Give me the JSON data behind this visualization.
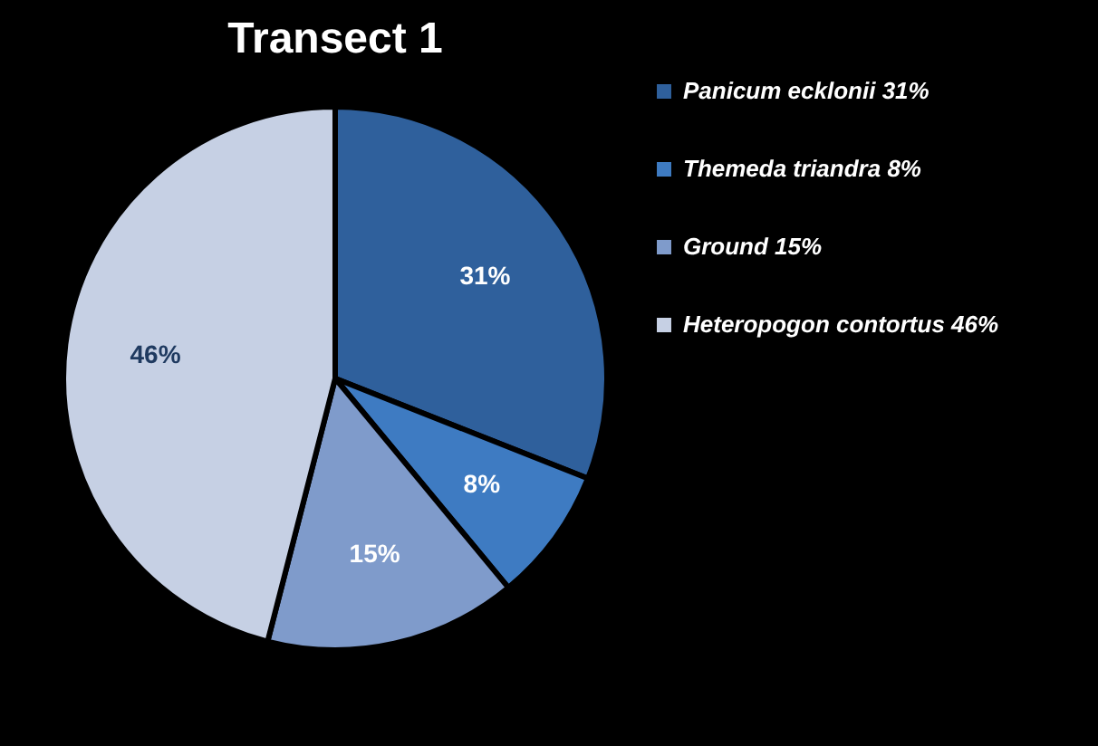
{
  "chart_data": {
    "type": "pie",
    "title": "Transect 1",
    "categories": [
      "Panicum ecklonii 31%",
      "Themeda triandra 8%",
      "Ground 15%",
      "Heteropogon contortus 46%"
    ],
    "values": [
      31,
      8,
      15,
      46
    ],
    "colors": [
      "#2f609c",
      "#3e7bc2",
      "#7f9bcb",
      "#c6d0e4"
    ],
    "value_labels": [
      "31%",
      "8%",
      "15%",
      "46%"
    ],
    "legend": "right"
  }
}
